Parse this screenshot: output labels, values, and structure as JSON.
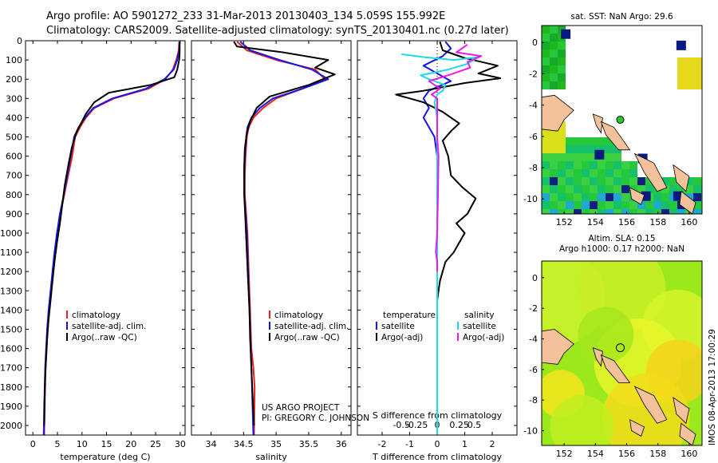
{
  "header": {
    "line1": "Argo profile: AO 5901272_233 31-Mar-2013 20130403_134 5.059S 155.992E",
    "line2": "Climatology: CARS2009. Satellite-adjusted climatology: synTS_20130401.nc (0.27d later)"
  },
  "credit": {
    "line1": "US ARGO PROJECT",
    "line2": "PI: GREGORY C. JOHNSON"
  },
  "side_stamp": "IMOS 08-Apr-2013 17:00:29",
  "colors": {
    "climatology": "#e8211d",
    "satellite": "#1515e8",
    "argo": "#000000",
    "sat_diff": "#20d8ea",
    "argo_sal_diff": "#e81de8",
    "land": "#f3c29a"
  },
  "chart_data": [
    {
      "id": "temperature",
      "type": "line",
      "xlabel": "temperature (deg C)",
      "xlim": [
        -1.5,
        31
      ],
      "xticks": [
        0,
        5,
        10,
        15,
        20,
        25,
        30
      ],
      "ylim": [
        0,
        2050
      ],
      "yticks": [
        0,
        100,
        200,
        300,
        400,
        500,
        600,
        700,
        800,
        900,
        1000,
        1100,
        1200,
        1300,
        1400,
        1500,
        1600,
        1700,
        1800,
        1900,
        2000
      ],
      "legend": [
        "climatology",
        "satellite-adj. clim.",
        "Argo(..raw -QC)"
      ],
      "series": [
        {
          "name": "climatology",
          "color_key": "climatology",
          "points": [
            [
              29.8,
              5
            ],
            [
              29.7,
              50
            ],
            [
              29.2,
              100
            ],
            [
              28.5,
              150
            ],
            [
              27.0,
              200
            ],
            [
              23.5,
              250
            ],
            [
              16.5,
              300
            ],
            [
              12.5,
              350
            ],
            [
              10.8,
              400
            ],
            [
              9.6,
              450
            ],
            [
              8.6,
              500
            ],
            [
              8.0,
              600
            ],
            [
              7.2,
              700
            ],
            [
              6.4,
              800
            ],
            [
              5.6,
              900
            ],
            [
              5.0,
              1000
            ],
            [
              4.5,
              1100
            ],
            [
              4.1,
              1200
            ],
            [
              3.7,
              1300
            ],
            [
              3.3,
              1400
            ],
            [
              3.0,
              1500
            ],
            [
              2.8,
              1600
            ],
            [
              2.6,
              1700
            ],
            [
              2.5,
              1800
            ],
            [
              2.4,
              1900
            ],
            [
              2.3,
              2050
            ]
          ]
        },
        {
          "name": "satellite-adj. clim.",
          "color_key": "satellite",
          "points": [
            [
              29.9,
              5
            ],
            [
              29.8,
              50
            ],
            [
              29.4,
              100
            ],
            [
              28.7,
              150
            ],
            [
              26.8,
              200
            ],
            [
              23.0,
              250
            ],
            [
              16.2,
              300
            ],
            [
              12.3,
              350
            ],
            [
              10.6,
              400
            ],
            [
              9.3,
              450
            ],
            [
              8.4,
              500
            ],
            [
              7.7,
              600
            ],
            [
              7.0,
              700
            ],
            [
              6.3,
              800
            ],
            [
              5.5,
              900
            ],
            [
              4.9,
              1000
            ],
            [
              4.4,
              1100
            ],
            [
              4.0,
              1200
            ],
            [
              3.6,
              1300
            ],
            [
              3.2,
              1400
            ],
            [
              2.9,
              1500
            ],
            [
              2.7,
              1600
            ],
            [
              2.5,
              1700
            ],
            [
              2.4,
              1800
            ],
            [
              2.3,
              1900
            ],
            [
              2.2,
              2050
            ]
          ]
        },
        {
          "name": "Argo(..raw -QC)",
          "color_key": "argo",
          "points": [
            [
              29.9,
              5
            ],
            [
              29.9,
              60
            ],
            [
              29.8,
              100
            ],
            [
              29.4,
              150
            ],
            [
              28.8,
              190
            ],
            [
              24.0,
              230
            ],
            [
              15.5,
              270
            ],
            [
              12.5,
              320
            ],
            [
              10.8,
              380
            ],
            [
              9.8,
              430
            ],
            [
              8.8,
              480
            ],
            [
              7.9,
              560
            ],
            [
              7.2,
              650
            ],
            [
              6.5,
              750
            ],
            [
              6.0,
              850
            ],
            [
              5.5,
              950
            ],
            [
              4.9,
              1050
            ],
            [
              4.4,
              1150
            ],
            [
              4.0,
              1250
            ],
            [
              3.6,
              1350
            ],
            [
              3.2,
              1450
            ],
            [
              2.9,
              1550
            ],
            [
              2.7,
              1650
            ],
            [
              2.5,
              1750
            ],
            [
              2.4,
              1850
            ],
            [
              2.3,
              2000
            ]
          ]
        }
      ]
    },
    {
      "id": "salinity",
      "type": "line",
      "xlabel": "salinity",
      "xlim": [
        33.7,
        36.15
      ],
      "xticks": [
        34,
        34.5,
        35,
        35.5,
        36
      ],
      "xtick_labels": [
        "34",
        "34.5",
        "35",
        "35.5",
        "36"
      ],
      "ylim": [
        0,
        2050
      ],
      "legend": [
        "climatology",
        "satellite-adj. clim.",
        "Argo(..raw -QC)"
      ],
      "series": [
        {
          "name": "climatology",
          "color_key": "climatology",
          "points": [
            [
              34.4,
              5
            ],
            [
              34.55,
              50
            ],
            [
              35.0,
              100
            ],
            [
              35.6,
              150
            ],
            [
              35.75,
              200
            ],
            [
              35.4,
              250
            ],
            [
              35.0,
              300
            ],
            [
              34.8,
              350
            ],
            [
              34.65,
              400
            ],
            [
              34.58,
              450
            ],
            [
              34.55,
              500
            ],
            [
              34.53,
              600
            ],
            [
              34.52,
              700
            ],
            [
              34.52,
              800
            ],
            [
              34.54,
              900
            ],
            [
              34.56,
              1000
            ],
            [
              34.58,
              1200
            ],
            [
              34.6,
              1400
            ],
            [
              34.62,
              1600
            ],
            [
              34.65,
              1700
            ],
            [
              34.67,
              1800
            ],
            [
              34.66,
              2050
            ]
          ]
        },
        {
          "name": "satellite-adj. clim.",
          "color_key": "satellite",
          "points": [
            [
              34.45,
              5
            ],
            [
              34.6,
              50
            ],
            [
              35.05,
              100
            ],
            [
              35.55,
              150
            ],
            [
              35.8,
              200
            ],
            [
              35.4,
              250
            ],
            [
              34.95,
              300
            ],
            [
              34.75,
              350
            ],
            [
              34.62,
              400
            ],
            [
              34.56,
              450
            ],
            [
              34.54,
              500
            ],
            [
              34.52,
              600
            ],
            [
              34.51,
              700
            ],
            [
              34.51,
              800
            ],
            [
              34.53,
              900
            ],
            [
              34.55,
              1000
            ],
            [
              34.57,
              1200
            ],
            [
              34.59,
              1400
            ],
            [
              34.61,
              1600
            ],
            [
              34.63,
              1800
            ],
            [
              34.65,
              2050
            ]
          ]
        },
        {
          "name": "Argo(..raw -QC)",
          "color_key": "argo",
          "points": [
            [
              34.35,
              5
            ],
            [
              34.4,
              30
            ],
            [
              35.1,
              60
            ],
            [
              35.8,
              100
            ],
            [
              35.6,
              140
            ],
            [
              35.9,
              175
            ],
            [
              35.5,
              230
            ],
            [
              34.9,
              290
            ],
            [
              34.7,
              350
            ],
            [
              34.6,
              420
            ],
            [
              34.55,
              480
            ],
            [
              34.52,
              560
            ],
            [
              34.51,
              650
            ],
            [
              34.51,
              800
            ],
            [
              34.53,
              950
            ],
            [
              34.55,
              1100
            ],
            [
              34.57,
              1250
            ],
            [
              34.59,
              1400
            ],
            [
              34.6,
              1550
            ],
            [
              34.62,
              1700
            ],
            [
              34.64,
              1850
            ],
            [
              34.66,
              2000
            ]
          ]
        }
      ]
    },
    {
      "id": "difference",
      "type": "line",
      "xlabel_top": "S difference from climatology",
      "xlabel": "T difference from climatology",
      "xlim": [
        -2.9,
        2.9
      ],
      "xticks": [
        -2,
        -1,
        0,
        1,
        2
      ],
      "s_ticks": [
        "-0.5",
        "-0.25",
        "0",
        "0.25",
        "0.5"
      ],
      "ylim": [
        0,
        2050
      ],
      "legend_temperature_title": "temperature",
      "legend_salinity_title": "salinity",
      "legend_temperature": [
        "satellite",
        "Argo(-adj)"
      ],
      "legend_salinity": [
        "satellite",
        "Argo(-adj)"
      ],
      "series": [
        {
          "name": "T satellite",
          "color_key": "satellite",
          "points": [
            [
              0.3,
              5
            ],
            [
              0.5,
              40
            ],
            [
              0.2,
              80
            ],
            [
              -0.5,
              130
            ],
            [
              0.0,
              170
            ],
            [
              0.5,
              210
            ],
            [
              -0.3,
              260
            ],
            [
              -0.5,
              300
            ],
            [
              -0.3,
              350
            ],
            [
              -0.5,
              400
            ],
            [
              -0.3,
              450
            ],
            [
              -0.1,
              500
            ],
            [
              0,
              600
            ],
            [
              0,
              800
            ],
            [
              0,
              1000
            ],
            [
              0,
              1200
            ],
            [
              0,
              1500
            ],
            [
              0,
              1800
            ],
            [
              0,
              2050
            ]
          ]
        },
        {
          "name": "T Argo(-adj)",
          "color_key": "argo",
          "points": [
            [
              0.1,
              5
            ],
            [
              0.2,
              50
            ],
            [
              1.0,
              90
            ],
            [
              2.2,
              130
            ],
            [
              1.5,
              170
            ],
            [
              2.3,
              195
            ],
            [
              1.0,
              220
            ],
            [
              -0.5,
              260
            ],
            [
              -1.5,
              280
            ],
            [
              -0.5,
              320
            ],
            [
              0.2,
              370
            ],
            [
              0.8,
              430
            ],
            [
              0.5,
              470
            ],
            [
              0.2,
              520
            ],
            [
              0.4,
              600
            ],
            [
              0.5,
              700
            ],
            [
              0.9,
              760
            ],
            [
              1.4,
              820
            ],
            [
              1.1,
              900
            ],
            [
              0.7,
              950
            ],
            [
              1.0,
              1000
            ],
            [
              0.8,
              1050
            ],
            [
              0.6,
              1100
            ],
            [
              0.3,
              1150
            ],
            [
              0.1,
              1250
            ],
            [
              0,
              1350
            ],
            [
              0,
              1500
            ],
            [
              0,
              2050
            ]
          ]
        },
        {
          "name": "S satellite",
          "color_key": "sat_diff",
          "points": [
            [
              -1.3,
              70
            ],
            [
              -0.5,
              85
            ],
            [
              0.6,
              100
            ],
            [
              1.5,
              85
            ],
            [
              1.1,
              120
            ],
            [
              0.4,
              150
            ],
            [
              -0.6,
              180
            ],
            [
              -0.3,
              200
            ],
            [
              0.3,
              230
            ],
            [
              0.2,
              260
            ],
            [
              0.0,
              280
            ],
            [
              -0.1,
              320
            ],
            [
              0,
              400
            ],
            [
              0,
              600
            ],
            [
              0,
              1000
            ],
            [
              0,
              1500
            ],
            [
              0,
              2050
            ]
          ]
        },
        {
          "name": "S Argo(-adj)",
          "color_key": "argo_sal_diff",
          "points": [
            [
              1.1,
              20
            ],
            [
              0.7,
              60
            ],
            [
              1.6,
              80
            ],
            [
              1.1,
              110
            ],
            [
              1.2,
              140
            ],
            [
              0.5,
              175
            ],
            [
              -0.3,
              210
            ],
            [
              0.1,
              250
            ],
            [
              -0.2,
              280
            ],
            [
              0.0,
              300
            ],
            [
              0,
              400
            ],
            [
              0,
              500
            ],
            [
              0.05,
              600
            ],
            [
              0.03,
              800
            ],
            [
              0,
              1000
            ],
            [
              -0.05,
              1100
            ],
            [
              0,
              1150
            ],
            [
              0,
              1200
            ]
          ]
        }
      ]
    }
  ],
  "maps": {
    "sst": {
      "title": "sat. SST: NaN Argo: 29.6",
      "xticks": [
        "152",
        "154",
        "156",
        "158",
        "160"
      ],
      "yticks": [
        "0",
        "-2",
        "-4",
        "-6",
        "-8",
        "-10"
      ]
    },
    "sla": {
      "title_line1": "Altim. SLA: 0.15",
      "title_line2": "Argo h1000: 0.17 h2000: NaN",
      "xticks": [
        "152",
        "154",
        "156",
        "158",
        "160"
      ],
      "yticks": [
        "0",
        "-2",
        "-4",
        "-6",
        "-8",
        "-10"
      ]
    }
  }
}
